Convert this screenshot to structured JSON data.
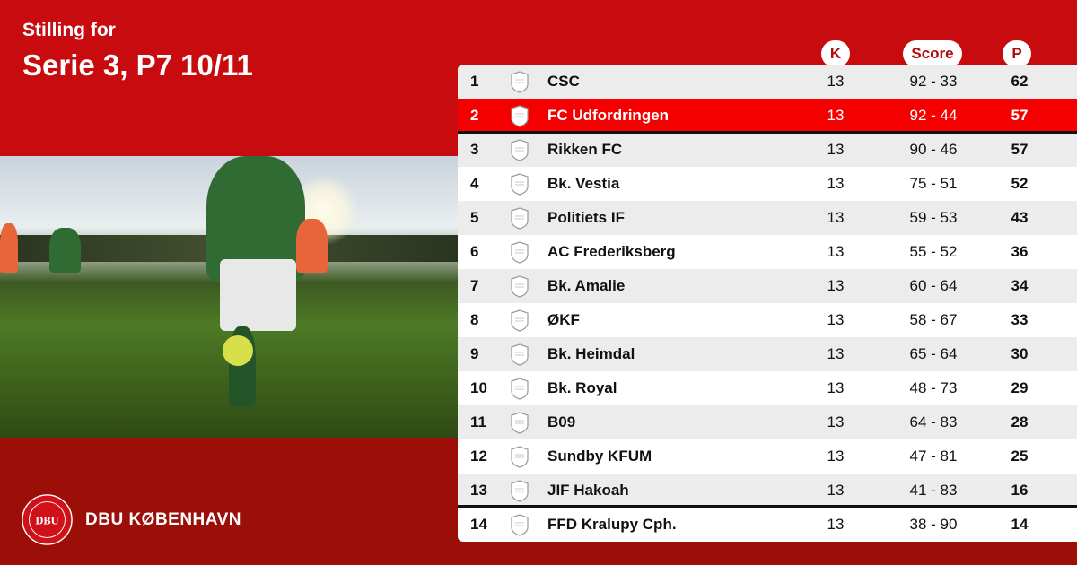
{
  "header": {
    "subtitle": "Stilling for",
    "title": "Serie 3, P7 10/11"
  },
  "columns": {
    "k": "K",
    "score": "Score",
    "p": "P"
  },
  "colors": {
    "top": "#c80b0e",
    "bottom": "#9b0f08",
    "highlight": "#f50000"
  },
  "rows": [
    {
      "pos": "1",
      "team": "CSC",
      "k": "13",
      "score": "92 - 33",
      "p": "62"
    },
    {
      "pos": "2",
      "team": "FC Udfordringen",
      "k": "13",
      "score": "92 - 44",
      "p": "57",
      "highlight": true
    },
    {
      "pos": "3",
      "team": "Rikken FC",
      "k": "13",
      "score": "90 - 46",
      "p": "57"
    },
    {
      "pos": "4",
      "team": "Bk. Vestia",
      "k": "13",
      "score": "75 - 51",
      "p": "52"
    },
    {
      "pos": "5",
      "team": "Politiets IF",
      "k": "13",
      "score": "59 - 53",
      "p": "43"
    },
    {
      "pos": "6",
      "team": "AC Frederiksberg",
      "k": "13",
      "score": "55 - 52",
      "p": "36"
    },
    {
      "pos": "7",
      "team": "Bk. Amalie",
      "k": "13",
      "score": "60 - 64",
      "p": "34"
    },
    {
      "pos": "8",
      "team": "ØKF",
      "k": "13",
      "score": "58 - 67",
      "p": "33"
    },
    {
      "pos": "9",
      "team": "Bk. Heimdal",
      "k": "13",
      "score": "65 - 64",
      "p": "30"
    },
    {
      "pos": "10",
      "team": "Bk. Royal",
      "k": "13",
      "score": "48 - 73",
      "p": "29"
    },
    {
      "pos": "11",
      "team": "B09",
      "k": "13",
      "score": "64 - 83",
      "p": "28"
    },
    {
      "pos": "12",
      "team": "Sundby KFUM",
      "k": "13",
      "score": "47 - 81",
      "p": "25"
    },
    {
      "pos": "13",
      "team": "JIF Hakoah",
      "k": "13",
      "score": "41 - 83",
      "p": "16"
    },
    {
      "pos": "14",
      "team": "FFD Kralupy Cph.",
      "k": "13",
      "score": "38 - 90",
      "p": "14"
    }
  ],
  "footer": {
    "brand": "DBU KØBENHAVN",
    "logo_text": "DBU DANSK BOLDSPIL UNION 1889"
  }
}
